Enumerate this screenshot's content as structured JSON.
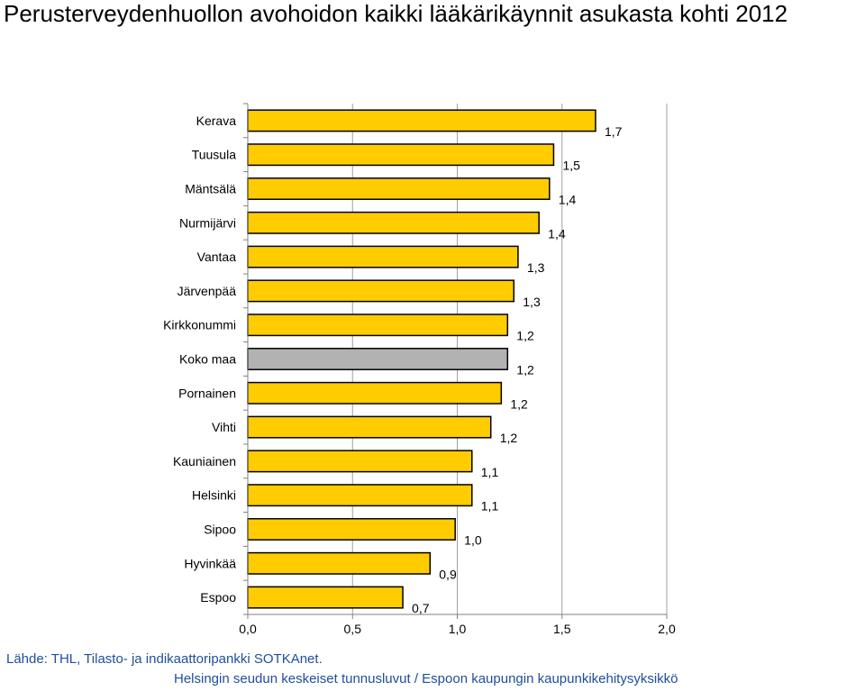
{
  "title": "Perusterveydenhuollon avohoidon kaikki lääkärikäynnit asukasta kohti 2012",
  "source": "Lähde: THL, Tilasto- ja indikaattoripankki SOTKAnet.",
  "footer": "Helsingin seudun keskeiset tunnusluvut / Espoon kaupungin kaupunkikehitysyksikkö",
  "colors": {
    "bar": "#ffcc00",
    "highlight": "#b2b2b2",
    "outline": "#000000",
    "grid": "#a0a0a0"
  },
  "chart_data": {
    "type": "bar",
    "orientation": "horizontal",
    "categories": [
      "Kerava",
      "Tuusula",
      "Mäntsälä",
      "Nurmijärvi",
      "Vantaa",
      "Järvenpää",
      "Kirkkonummi",
      "Koko maa",
      "Pornainen",
      "Vihti",
      "Kauniainen",
      "Helsinki",
      "Sipoo",
      "Hyvinkää",
      "Espoo"
    ],
    "values": [
      1.66,
      1.46,
      1.44,
      1.39,
      1.29,
      1.27,
      1.24,
      1.24,
      1.21,
      1.16,
      1.07,
      1.07,
      0.99,
      0.87,
      0.74
    ],
    "value_labels": [
      "1,7",
      "1,5",
      "1,4",
      "1,4",
      "1,3",
      "1,3",
      "1,2",
      "1,2",
      "1,2",
      "1,2",
      "1,1",
      "1,1",
      "1,0",
      "0,9",
      "0,7"
    ],
    "highlight": "Koko maa",
    "xlim": [
      0,
      2.0
    ],
    "xticks": [
      0,
      0.5,
      1.0,
      1.5,
      2.0
    ],
    "xtick_labels": [
      "0,0",
      "0,5",
      "1,0",
      "1,5",
      "2,0"
    ],
    "grid": true,
    "legend": "none"
  }
}
